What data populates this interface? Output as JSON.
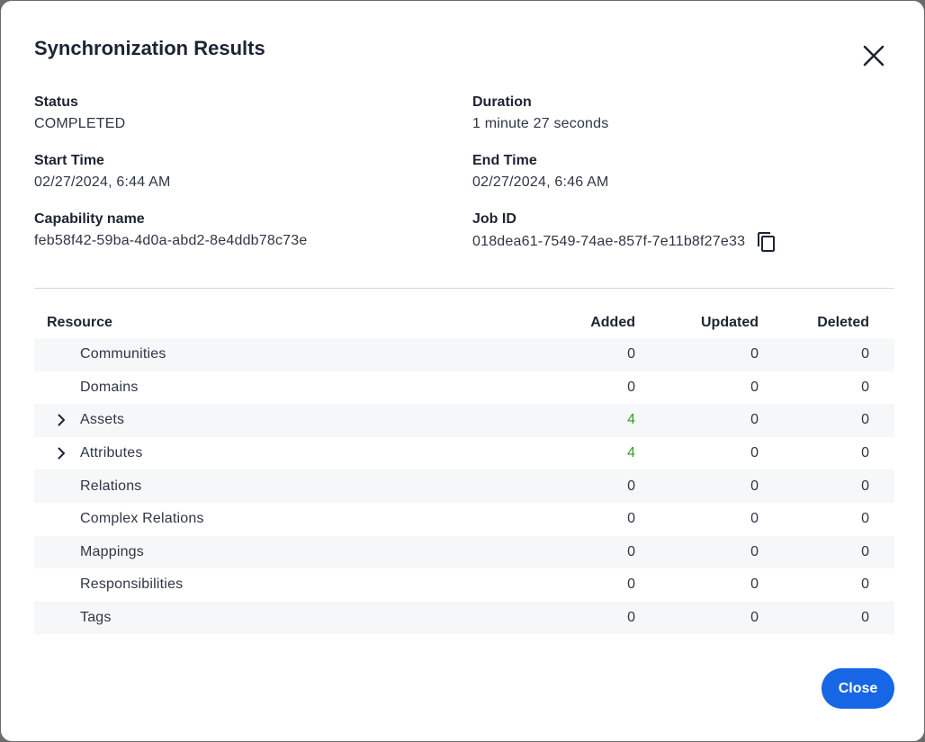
{
  "dialog": {
    "title": "Synchronization Results",
    "close_button_label": "Close"
  },
  "fields": {
    "status": {
      "label": "Status",
      "value": "COMPLETED"
    },
    "duration": {
      "label": "Duration",
      "value": "1 minute 27 seconds"
    },
    "start_time": {
      "label": "Start Time",
      "value": "02/27/2024, 6:44 AM"
    },
    "end_time": {
      "label": "End Time",
      "value": "02/27/2024, 6:46 AM"
    },
    "capability_name": {
      "label": "Capability name",
      "value": "feb58f42-59ba-4d0a-abd2-8e4ddb78c73e"
    },
    "job_id": {
      "label": "Job ID",
      "value": "018dea61-7549-74ae-857f-7e11b8f27e33"
    }
  },
  "table": {
    "headers": {
      "resource": "Resource",
      "added": "Added",
      "updated": "Updated",
      "deleted": "Deleted"
    },
    "rows": [
      {
        "resource": "Communities",
        "added": "0",
        "updated": "0",
        "deleted": "0",
        "expandable": false
      },
      {
        "resource": "Domains",
        "added": "0",
        "updated": "0",
        "deleted": "0",
        "expandable": false
      },
      {
        "resource": "Assets",
        "added": "4",
        "updated": "0",
        "deleted": "0",
        "expandable": true
      },
      {
        "resource": "Attributes",
        "added": "4",
        "updated": "0",
        "deleted": "0",
        "expandable": true
      },
      {
        "resource": "Relations",
        "added": "0",
        "updated": "0",
        "deleted": "0",
        "expandable": false
      },
      {
        "resource": "Complex Relations",
        "added": "0",
        "updated": "0",
        "deleted": "0",
        "expandable": false
      },
      {
        "resource": "Mappings",
        "added": "0",
        "updated": "0",
        "deleted": "0",
        "expandable": false
      },
      {
        "resource": "Responsibilities",
        "added": "0",
        "updated": "0",
        "deleted": "0",
        "expandable": false
      },
      {
        "resource": "Tags",
        "added": "0",
        "updated": "0",
        "deleted": "0",
        "expandable": false
      }
    ]
  },
  "icons": {
    "close": "close-icon",
    "copy": "copy-icon",
    "expand": "chevron-right-icon"
  },
  "colors": {
    "accent": "#1766e5",
    "positive": "#3a9b2a"
  }
}
